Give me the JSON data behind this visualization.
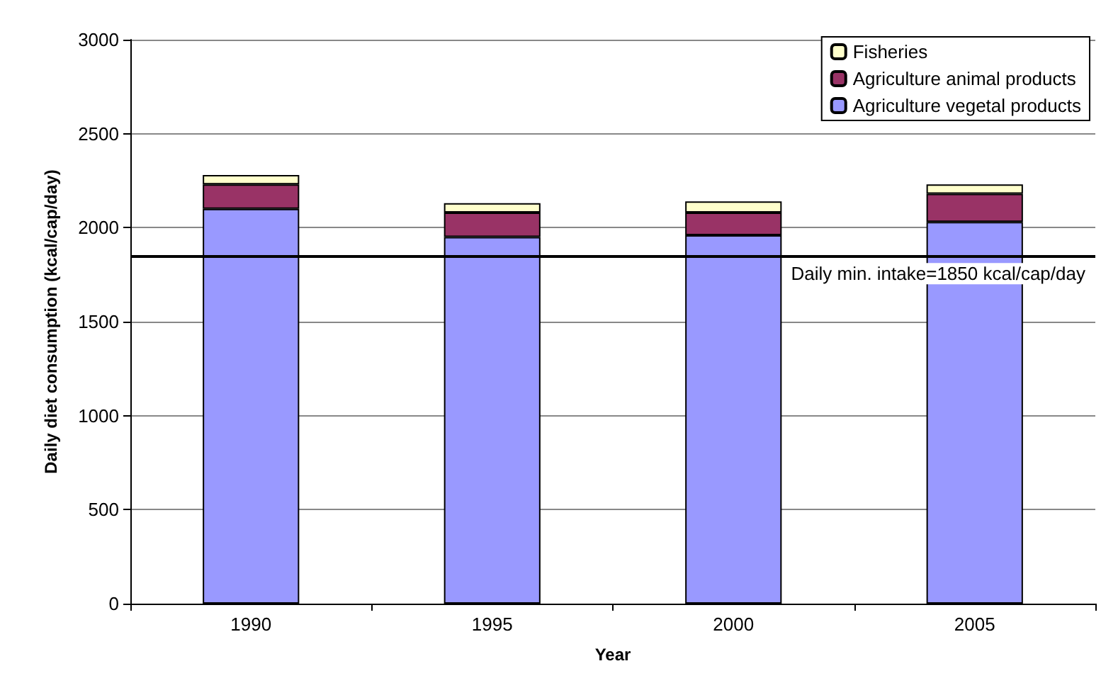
{
  "chart_data": {
    "type": "bar",
    "stacked": true,
    "xlabel": "Year",
    "ylabel": "Daily diet consumption (kcal/cap/day)",
    "categories": [
      "1990",
      "1995",
      "2000",
      "2005"
    ],
    "series": [
      {
        "name": "Agriculture vegetal products",
        "color": "#9999ff",
        "values": [
          2100,
          1950,
          1960,
          2030
        ]
      },
      {
        "name": "Agriculture animal products",
        "color": "#993366",
        "values": [
          130,
          130,
          120,
          150
        ]
      },
      {
        "name": "Fisheries",
        "color": "#ffffcc",
        "values": [
          50,
          50,
          60,
          50
        ]
      }
    ],
    "ylim": [
      0,
      3000
    ],
    "yticks": [
      0,
      500,
      1000,
      1500,
      2000,
      2500,
      3000
    ],
    "grid": "y",
    "legend": "top right",
    "ref_lines": [
      {
        "axis": "y",
        "value": 1850,
        "label": "Daily min. intake=1850 kcal/cap/day",
        "color": "#000000"
      }
    ]
  }
}
